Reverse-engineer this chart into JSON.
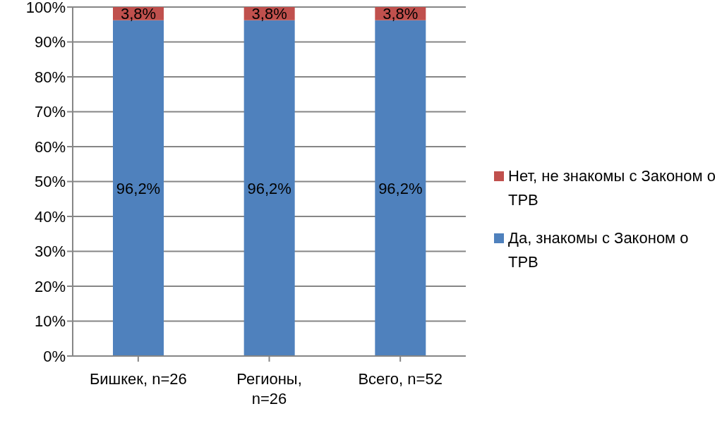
{
  "chart_data": {
    "type": "bar",
    "stacked": true,
    "categories": [
      "Бишкек, n=26",
      "Регионы, n=26",
      "Всего, n=52"
    ],
    "series": [
      {
        "name": "Да, знакомы с Законом о ТРВ",
        "color": "#4f81bd",
        "values": [
          96.2,
          96.2,
          96.2
        ],
        "value_labels": [
          "96,2%",
          "96,2%",
          "96,2%"
        ]
      },
      {
        "name": "Нет, не знакомы с Законом о ТРВ",
        "color": "#c0504d",
        "values": [
          3.8,
          3.8,
          3.8
        ],
        "value_labels": [
          "3,8%",
          "3,8%",
          "3,8%"
        ]
      }
    ],
    "ylim": [
      0,
      100
    ],
    "yticks": [
      {
        "value": 0,
        "label": "0%"
      },
      {
        "value": 10,
        "label": "10%"
      },
      {
        "value": 20,
        "label": "20%"
      },
      {
        "value": 30,
        "label": "30%"
      },
      {
        "value": 40,
        "label": "40%"
      },
      {
        "value": 50,
        "label": "50%"
      },
      {
        "value": 60,
        "label": "60%"
      },
      {
        "value": 70,
        "label": "70%"
      },
      {
        "value": 80,
        "label": "80%"
      },
      {
        "value": 90,
        "label": "90%"
      },
      {
        "value": 100,
        "label": "100%"
      }
    ],
    "grid": "y",
    "legend": "right"
  }
}
